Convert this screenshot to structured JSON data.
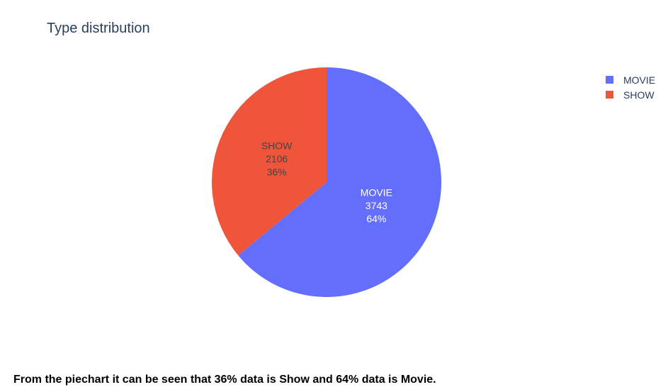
{
  "chart_data": {
    "type": "pie",
    "title": "Type distribution",
    "categories": [
      "MOVIE",
      "SHOW"
    ],
    "values": [
      3743,
      2106
    ],
    "percent_labels": [
      "64%",
      "36%"
    ],
    "colors": [
      "#636efa",
      "#ef553b"
    ],
    "text_colors": [
      "#ffffff",
      "#444444"
    ],
    "legend_position": "top-right",
    "start": "12 o'clock",
    "direction": "clockwise"
  },
  "caption": "From the piechart it can be seen that 36% data is Show and 64% data is Movie."
}
